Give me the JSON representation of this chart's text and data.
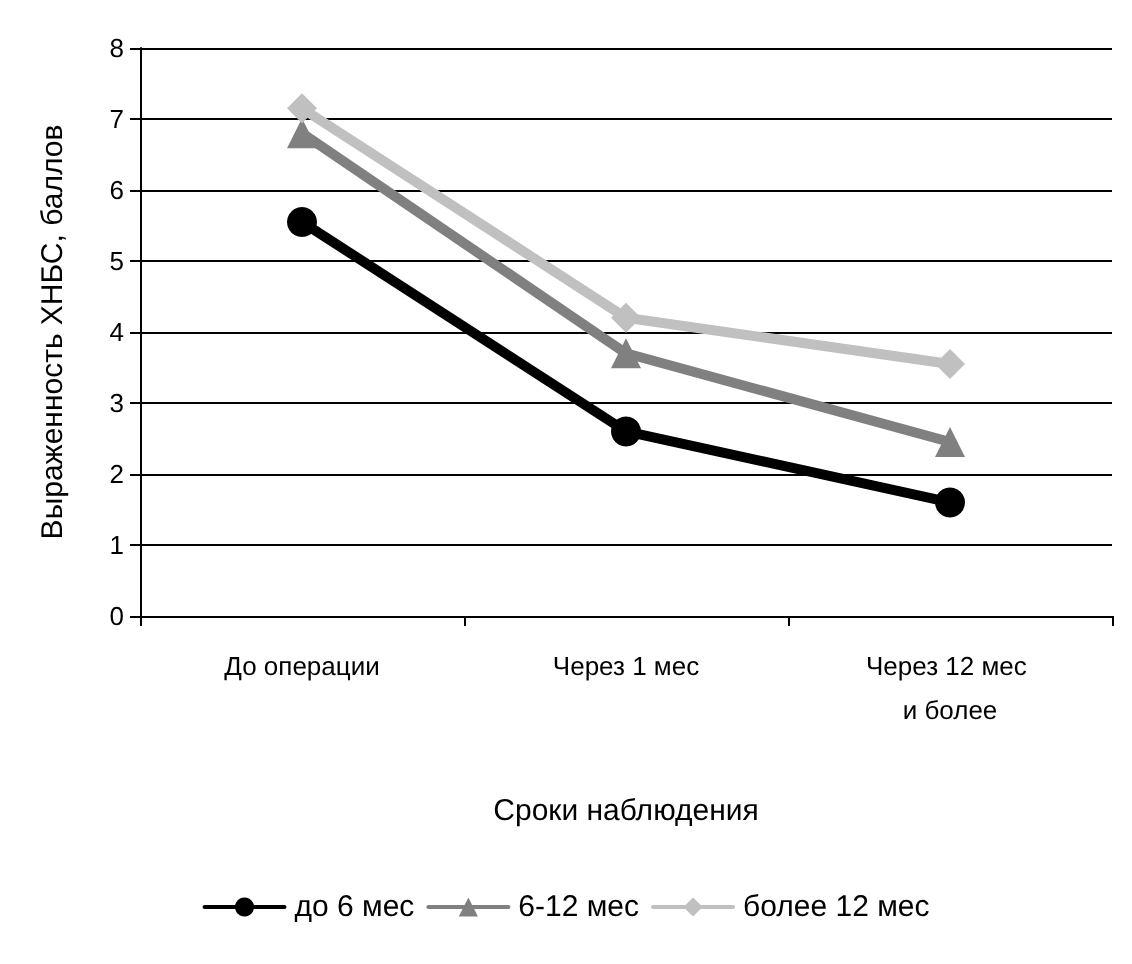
{
  "chart_data": {
    "type": "line",
    "xlabel": "Сроки наблюдения",
    "ylabel": "Выраженность ХНБС, баллов",
    "categories": [
      "До операции",
      "Через 1 мес",
      "Через 12 мес и более"
    ],
    "series": [
      {
        "name": "до 6 мес",
        "color": "#000000",
        "marker": "circle",
        "values": [
          5.55,
          2.6,
          1.6
        ]
      },
      {
        "name": "6-12 мес",
        "color": "#808080",
        "marker": "triangle",
        "values": [
          6.8,
          3.7,
          2.45
        ]
      },
      {
        "name": "более 12 мес",
        "color": "#c0c0c0",
        "marker": "diamond",
        "values": [
          7.15,
          4.2,
          3.55
        ]
      }
    ],
    "ylim": [
      0,
      8
    ],
    "yticks": [
      0,
      1,
      2,
      3,
      4,
      5,
      6,
      7,
      8
    ],
    "grid": "y",
    "legend": "bottom",
    "line_style": "solid"
  }
}
